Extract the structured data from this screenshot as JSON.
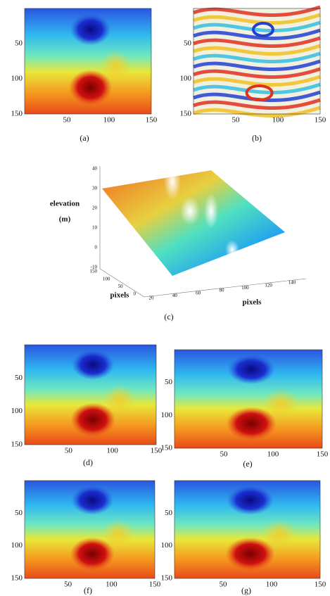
{
  "panels": [
    {
      "label": "(a)",
      "xticks": [
        50,
        100,
        150
      ],
      "yticks": [
        50,
        100,
        150
      ]
    },
    {
      "label": "(b)",
      "xticks": [
        50,
        100,
        150
      ],
      "yticks": [
        50,
        100,
        150
      ]
    },
    {
      "label": "(d)",
      "xticks": [
        50,
        100,
        150
      ],
      "yticks": [
        50,
        100,
        150
      ]
    },
    {
      "label": "(e)",
      "xticks": [
        50,
        100,
        150
      ],
      "yticks": [
        50,
        100,
        150
      ]
    },
    {
      "label": "(f)",
      "xticks": [
        50,
        100,
        150
      ],
      "yticks": [
        50,
        100,
        150
      ]
    },
    {
      "label": "(g)",
      "xticks": [
        50,
        100,
        150
      ],
      "yticks": [
        50,
        100,
        150
      ]
    }
  ],
  "surface": {
    "label": "(c)",
    "z_label": [
      "elevation",
      "(m)"
    ],
    "zticks": [
      40,
      30,
      20,
      10,
      0,
      -10
    ],
    "y_label": "pixels",
    "yticks": [
      150,
      100,
      50,
      0
    ],
    "x_label": "pixels",
    "xticks": [
      20,
      40,
      60,
      80,
      100,
      120,
      140
    ]
  }
}
